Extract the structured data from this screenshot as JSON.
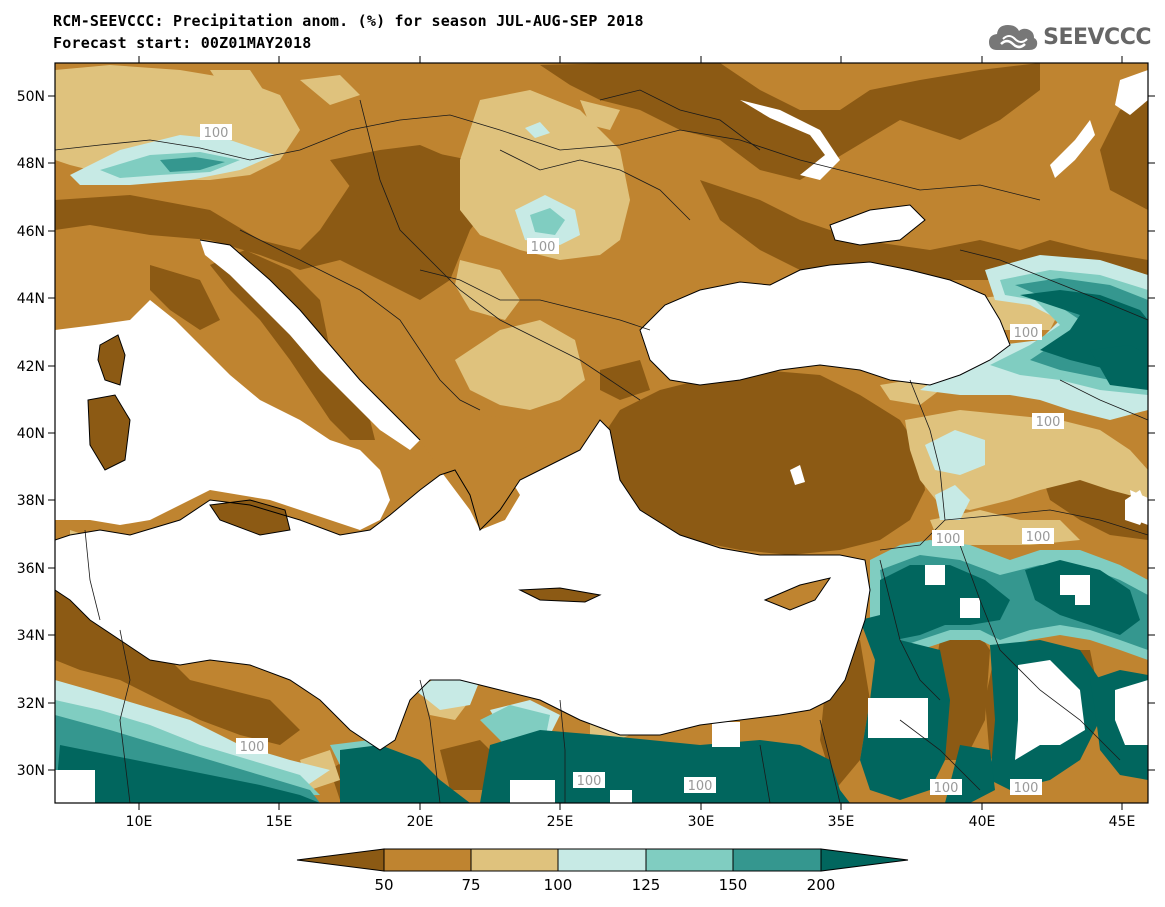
{
  "header": {
    "title_line1": "RCM-SEEVCCC: Precipitation anom. (%) for season JUL-AUG-SEP 2018",
    "title_line2": "Forecast start: 00Z01MAY2018",
    "logo_text": "SEEVCCC"
  },
  "map": {
    "lon_labels": [
      "10E",
      "15E",
      "20E",
      "25E",
      "30E",
      "35E",
      "40E",
      "45E"
    ],
    "lat_labels": [
      "50N",
      "48N",
      "46N",
      "44N",
      "42N",
      "40N",
      "38N",
      "36N",
      "34N",
      "32N",
      "30N"
    ],
    "contour_labels": [
      "100",
      "100",
      "100",
      "100",
      "100",
      "100",
      "100",
      "100",
      "100",
      "100",
      "100"
    ]
  },
  "colorbar": {
    "ticks": [
      "50",
      "75",
      "100",
      "125",
      "150",
      "200"
    ],
    "colors": {
      "lt50": "#8c5a14",
      "50_75": "#bf8430",
      "75_100": "#dfc27d",
      "100_125": "#c7eae5",
      "125_150": "#80cdc1",
      "150_200": "#35978f",
      "gt200": "#01665e"
    }
  },
  "colors": {
    "sea": "#ffffff",
    "border": "#1a1a1a",
    "contour_label_bg": "#ffffff",
    "contour_label_text": "#999999"
  }
}
